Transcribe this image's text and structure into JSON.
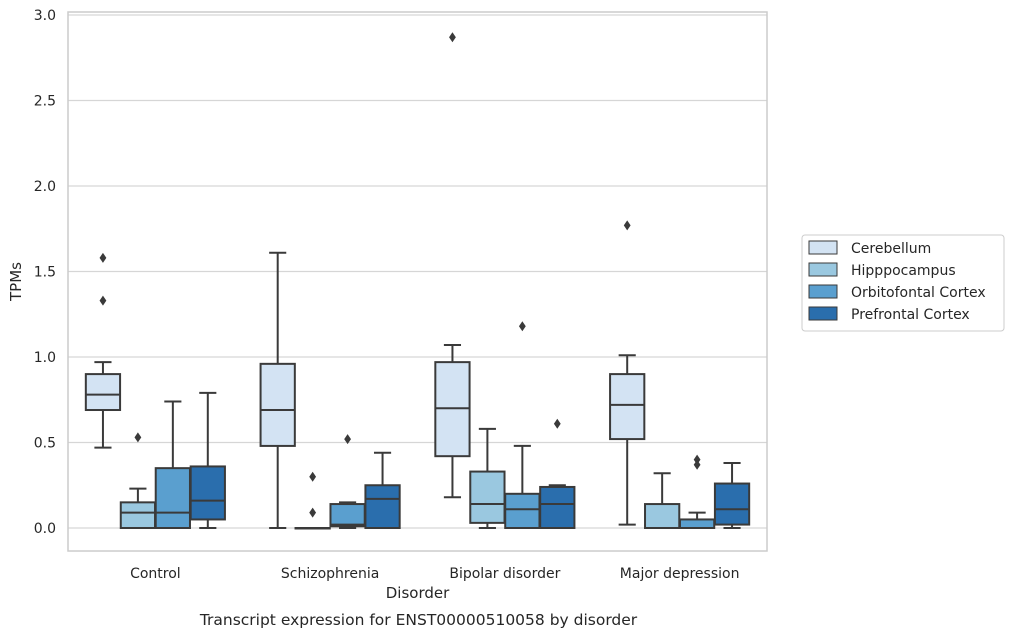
{
  "caption": "Transcript expression for ENST00000510058 by disorder",
  "chart_data": {
    "type": "boxplot",
    "xlabel": "Disorder",
    "ylabel": "TPMs",
    "ylim": [
      -0.14,
      3.02
    ],
    "yticks": [
      "0.0",
      "0.5",
      "1.0",
      "1.5",
      "2.0",
      "2.5",
      "3.0"
    ],
    "grid": "horizontal",
    "legend_position": "right",
    "categories": [
      "Control",
      "Schizophrenia",
      "Bipolar disorder",
      "Major depression"
    ],
    "series": [
      {
        "name": "Cerebellum",
        "color": "#d3e3f3",
        "boxes": [
          {
            "whislo": 0.47,
            "q1": 0.69,
            "med": 0.78,
            "q3": 0.9,
            "whishi": 0.97,
            "fliers": [
              1.33,
              1.58
            ]
          },
          {
            "whislo": 0.0,
            "q1": 0.48,
            "med": 0.69,
            "q3": 0.96,
            "whishi": 1.61,
            "fliers": []
          },
          {
            "whislo": 0.18,
            "q1": 0.42,
            "med": 0.7,
            "q3": 0.97,
            "whishi": 1.07,
            "fliers": [
              2.87
            ]
          },
          {
            "whislo": 0.02,
            "q1": 0.52,
            "med": 0.72,
            "q3": 0.9,
            "whishi": 1.01,
            "fliers": [
              1.77
            ]
          }
        ]
      },
      {
        "name": "Hipppocampus",
        "color": "#9ac8e0",
        "boxes": [
          {
            "whislo": 0.0,
            "q1": 0.0,
            "med": 0.09,
            "q3": 0.15,
            "whishi": 0.23,
            "fliers": [
              0.53
            ]
          },
          {
            "whislo": 0.0,
            "q1": 0.0,
            "med": 0.0,
            "q3": 0.0,
            "whishi": 0.0,
            "fliers": [
              0.09,
              0.3
            ]
          },
          {
            "whislo": 0.0,
            "q1": 0.03,
            "med": 0.14,
            "q3": 0.33,
            "whishi": 0.58,
            "fliers": []
          },
          {
            "whislo": 0.0,
            "q1": 0.0,
            "med": 0.0,
            "q3": 0.14,
            "whishi": 0.32,
            "fliers": []
          }
        ]
      },
      {
        "name": "Orbitofontal Cortex",
        "color": "#5a9fcf",
        "boxes": [
          {
            "whislo": 0.0,
            "q1": 0.0,
            "med": 0.09,
            "q3": 0.35,
            "whishi": 0.74,
            "fliers": []
          },
          {
            "whislo": 0.0,
            "q1": 0.01,
            "med": 0.02,
            "q3": 0.14,
            "whishi": 0.15,
            "fliers": [
              0.52
            ]
          },
          {
            "whislo": 0.0,
            "q1": 0.0,
            "med": 0.11,
            "q3": 0.2,
            "whishi": 0.48,
            "fliers": [
              1.18
            ]
          },
          {
            "whislo": 0.0,
            "q1": 0.0,
            "med": 0.0,
            "q3": 0.05,
            "whishi": 0.09,
            "fliers": [
              0.37,
              0.4
            ]
          }
        ]
      },
      {
        "name": "Prefrontal Cortex",
        "color": "#2a6ead",
        "boxes": [
          {
            "whislo": 0.0,
            "q1": 0.05,
            "med": 0.16,
            "q3": 0.36,
            "whishi": 0.79,
            "fliers": []
          },
          {
            "whislo": 0.0,
            "q1": 0.0,
            "med": 0.17,
            "q3": 0.25,
            "whishi": 0.44,
            "fliers": []
          },
          {
            "whislo": 0.0,
            "q1": 0.0,
            "med": 0.14,
            "q3": 0.24,
            "whishi": 0.25,
            "fliers": [
              0.61
            ]
          },
          {
            "whislo": 0.0,
            "q1": 0.02,
            "med": 0.11,
            "q3": 0.26,
            "whishi": 0.38,
            "fliers": []
          }
        ]
      }
    ]
  }
}
